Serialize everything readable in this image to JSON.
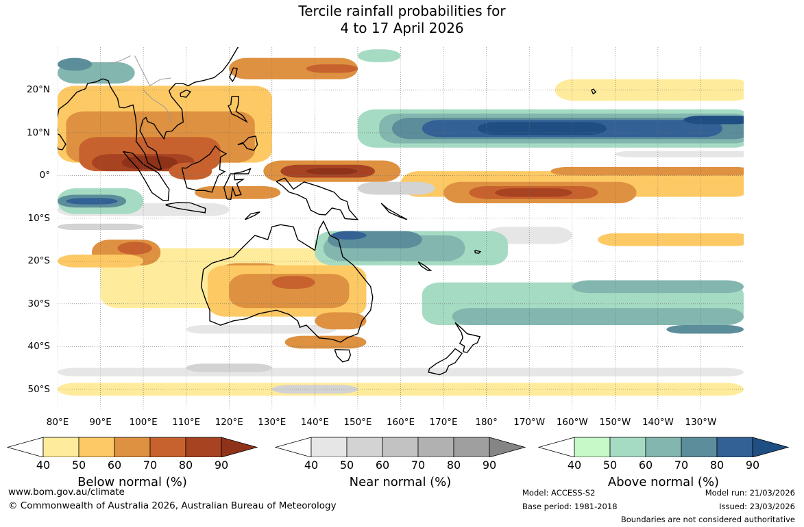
{
  "title": {
    "line1": "Tercile rainfall probabilities for",
    "line2": "4 to 17 April 2026"
  },
  "map": {
    "lat_labels": [
      "20°N",
      "10°N",
      "0°",
      "10°S",
      "20°S",
      "30°S",
      "40°S",
      "50°S"
    ],
    "lat_values": [
      20,
      10,
      0,
      -10,
      -20,
      -30,
      -40,
      -50
    ],
    "lon_labels": [
      "80°E",
      "90°E",
      "100°E",
      "110°E",
      "120°E",
      "130°E",
      "140°E",
      "150°E",
      "160°E",
      "170°E",
      "180°",
      "170°W",
      "160°W",
      "150°W",
      "140°W",
      "130°W"
    ],
    "lon_values": [
      80,
      90,
      100,
      110,
      120,
      130,
      140,
      150,
      160,
      170,
      180,
      190,
      200,
      210,
      220,
      230
    ],
    "lon_range": [
      80,
      240
    ],
    "lat_range": [
      -55,
      30
    ]
  },
  "colors": {
    "below": [
      "#ffeb9c",
      "#fdc964",
      "#de9140",
      "#c7622f",
      "#a84322",
      "#8e3219"
    ],
    "near": [
      "#e6e6e6",
      "#d3d3d3",
      "#c2c2c2",
      "#b1b1b1",
      "#9f9f9f",
      "#858585"
    ],
    "above": [
      "#c7f8c8",
      "#a6dbc3",
      "#83b6ae",
      "#5b8d9a",
      "#336196",
      "#1f4e83"
    ],
    "land_outline": "#000000",
    "border_outline": "#999999"
  },
  "colorbars": [
    {
      "name": "below",
      "title": "Below normal (%)",
      "ticks": [
        "40",
        "50",
        "60",
        "70",
        "80",
        "90"
      ]
    },
    {
      "name": "near",
      "title": "Near normal (%)",
      "ticks": [
        "40",
        "50",
        "60",
        "70",
        "80",
        "90"
      ]
    },
    {
      "name": "above",
      "title": "Above normal (%)",
      "ticks": [
        "40",
        "50",
        "60",
        "70",
        "80",
        "90"
      ]
    }
  ],
  "footer": {
    "website": "www.bom.gov.au/climate",
    "copyright": "© Commonwealth of Australia 2026, Australian Bureau of Meteorology",
    "model": "Model: ACCESS-S2",
    "base_period": "Base period: 1981-2018",
    "model_run": "Model run: 21/03/2026",
    "issued": "Issued: 23/03/2026",
    "disclaimer": "Boundaries are not considered authoritative"
  }
}
